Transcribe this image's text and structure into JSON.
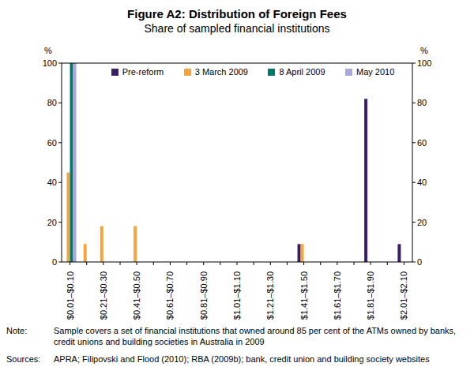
{
  "chart_data": {
    "type": "bar",
    "title": "Figure A2: Distribution of Foreign Fees",
    "subtitle": "Share of sampled financial institutions",
    "y_label": "%",
    "categories": [
      "$0.01–$0.10",
      null,
      "$0.21–$0.30",
      null,
      "$0.41–$0.50",
      null,
      "$0.61–$0.70",
      null,
      "$0.81–$0.90",
      null,
      "$1.01–$1.10",
      null,
      "$1.21–$1.30",
      null,
      "$1.41–$1.50",
      null,
      "$1.61–$1.70",
      null,
      "$1.81–$1.90",
      null,
      "$2.01–$2.10"
    ],
    "series": [
      {
        "name": "Pre-reform",
        "color": "#3b1f66",
        "values": [
          0,
          0,
          0,
          0,
          0,
          0,
          0,
          0,
          0,
          0,
          0,
          0,
          0,
          0,
          9,
          0,
          0,
          0,
          82,
          0,
          9
        ]
      },
      {
        "name": "3 March 2009",
        "color": "#f5a53c",
        "values": [
          45,
          9,
          18,
          0,
          18,
          0,
          0,
          0,
          0,
          0,
          0,
          0,
          0,
          0,
          9,
          0,
          0,
          0,
          0,
          0,
          0
        ]
      },
      {
        "name": "8 April 2009",
        "color": "#00796b",
        "values": [
          100,
          0,
          0,
          0,
          0,
          0,
          0,
          0,
          0,
          0,
          0,
          0,
          0,
          0,
          0,
          0,
          0,
          0,
          0,
          0,
          0
        ]
      },
      {
        "name": "May 2010",
        "color": "#a9a7dc",
        "values": [
          100,
          0,
          0,
          0,
          0,
          0,
          0,
          0,
          0,
          0,
          0,
          0,
          0,
          0,
          0,
          0,
          0,
          0,
          0,
          0,
          0
        ]
      }
    ],
    "ylim": [
      0,
      100
    ],
    "yticks": [
      0,
      20,
      40,
      60,
      80,
      100
    ],
    "grid": false,
    "legend": "top"
  },
  "notes": {
    "label": "Note:",
    "text": "Sample covers a set of financial institutions that owned around 85 per cent of the ATMs owned by banks, credit unions and building societies in Australia in 2009"
  },
  "sources": {
    "label": "Sources:",
    "text": "APRA; Filipovski and Flood (2010); RBA (2009b); bank, credit union and building society websites"
  }
}
